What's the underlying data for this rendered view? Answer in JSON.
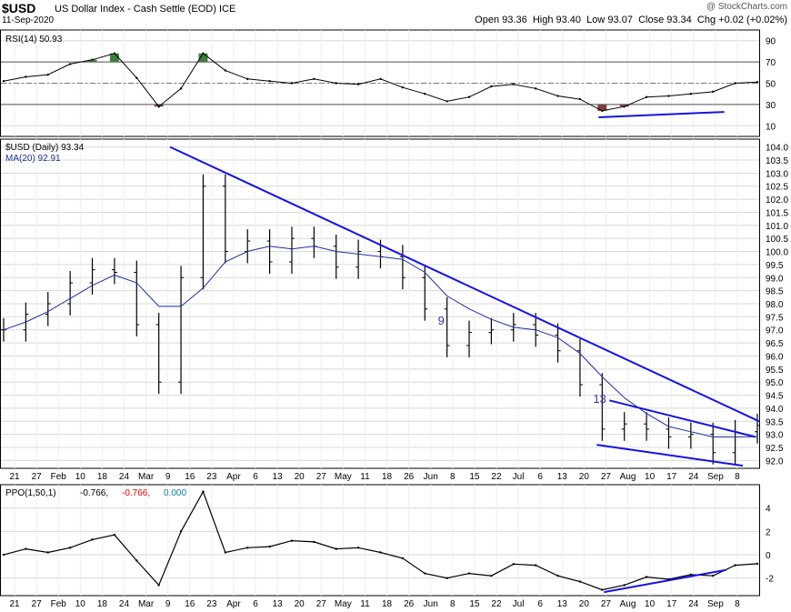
{
  "header": {
    "symbol": "$USD",
    "description": "US Dollar Index - Cash Settle (EOD)  ICE",
    "date": "11-Sep-2020",
    "credit": "@ StockCharts.com",
    "quote": {
      "open_label": "Open",
      "open": "93.36",
      "high_label": "High",
      "high": "93.40",
      "low_label": "Low",
      "low": "93.07",
      "close_label": "Close",
      "close": "93.34",
      "chg_label": "Chg",
      "chg": "+0.02 (+0.02%)"
    }
  },
  "colors": {
    "price": "#000000",
    "ma": "#1f2f9c",
    "trendline": "#1414e0",
    "overbought_fill": "#3f7f3f",
    "oversold_fill": "#7f3f3f",
    "ppo_signal": "#e00000",
    "ppo_hist": "#0a7fa0",
    "grid": "#d8d8d8"
  },
  "x_axis_labels": [
    "21",
    "27",
    "Feb",
    "10",
    "18",
    "24",
    "Mar",
    "9",
    "16",
    "23",
    "Apr",
    "6",
    "13",
    "20",
    "27",
    "May",
    "11",
    "18",
    "26",
    "Jun",
    "8",
    "15",
    "22",
    "Jul",
    "6",
    "13",
    "20",
    "27",
    "Aug",
    "10",
    "17",
    "24",
    "Sep",
    "8"
  ],
  "chart_data": [
    {
      "type": "line",
      "panel": "rsi",
      "legend": "RSI(14) 50.93",
      "y_ticks": [
        10,
        30,
        50,
        70,
        90
      ],
      "ylim": [
        0,
        100
      ],
      "overbought": 70,
      "oversold": 30,
      "x": [
        "Jan 20",
        "Jan 27",
        "Feb 3",
        "Feb 10",
        "Feb 18",
        "Feb 24",
        "Mar 2",
        "Mar 9",
        "Mar 16",
        "Mar 23",
        "Mar 30",
        "Apr 6",
        "Apr 13",
        "Apr 20",
        "Apr 27",
        "May 4",
        "May 11",
        "May 18",
        "May 26",
        "Jun 1",
        "Jun 8",
        "Jun 15",
        "Jun 22",
        "Jun 29",
        "Jul 6",
        "Jul 13",
        "Jul 20",
        "Jul 27",
        "Aug 3",
        "Aug 10",
        "Aug 17",
        "Aug 24",
        "Aug 31",
        "Sep 8",
        "Sep 11"
      ],
      "values": [
        52,
        56,
        58,
        68,
        72,
        78,
        55,
        28,
        45,
        78,
        62,
        54,
        52,
        50,
        54,
        50,
        49,
        54,
        46,
        40,
        33,
        37,
        47,
        49,
        45,
        38,
        35,
        24,
        28,
        37,
        38,
        40,
        42,
        50,
        51
      ]
    },
    {
      "type": "ohlc",
      "panel": "price",
      "legend": "$USD (Daily) 93.34",
      "ma_legend": "MA(20) 92.91",
      "y_ticks": [
        92.0,
        92.5,
        93.0,
        93.5,
        94.0,
        94.5,
        95.0,
        95.5,
        96.0,
        96.5,
        97.0,
        97.5,
        98.0,
        98.5,
        99.0,
        99.5,
        100.0,
        100.5,
        101.0,
        101.5,
        102.0,
        102.5,
        103.0,
        103.5,
        104.0
      ],
      "ylim": [
        91.7,
        104.3
      ],
      "x": [
        "Jan 20",
        "Jan 27",
        "Feb 3",
        "Feb 10",
        "Feb 18",
        "Feb 24",
        "Mar 2",
        "Mar 9",
        "Mar 16",
        "Mar 23",
        "Mar 30",
        "Apr 6",
        "Apr 13",
        "Apr 20",
        "Apr 27",
        "May 4",
        "May 11",
        "May 18",
        "May 26",
        "Jun 1",
        "Jun 8",
        "Jun 15",
        "Jun 22",
        "Jun 29",
        "Jul 6",
        "Jul 13",
        "Jul 20",
        "Jul 27",
        "Aug 3",
        "Aug 10",
        "Aug 17",
        "Aug 24",
        "Aug 31",
        "Sep 8",
        "Sep 11"
      ],
      "close": [
        97.0,
        97.6,
        98.0,
        98.8,
        99.3,
        99.2,
        97.2,
        95.0,
        99.0,
        102.5,
        100.0,
        100.4,
        99.6,
        100.5,
        100.2,
        99.4,
        100.0,
        99.8,
        99.0,
        97.8,
        96.4,
        96.9,
        97.0,
        97.2,
        96.8,
        96.2,
        94.9,
        93.2,
        93.4,
        93.2,
        92.9,
        93.0,
        92.3,
        93.1,
        93.34
      ],
      "ma20": [
        97.0,
        97.3,
        97.7,
        98.2,
        98.7,
        99.1,
        98.8,
        97.9,
        97.9,
        98.6,
        99.6,
        100.0,
        100.2,
        100.1,
        100.2,
        100.0,
        99.9,
        99.8,
        99.7,
        99.2,
        98.3,
        97.8,
        97.4,
        97.1,
        97.0,
        96.7,
        96.1,
        95.2,
        94.4,
        93.8,
        93.3,
        93.1,
        92.9,
        92.9,
        92.91
      ],
      "annotations": [
        {
          "label": "9",
          "x": "Jun 8",
          "y": 97.2
        },
        {
          "label": "13",
          "x": "Jul 27",
          "y": 94.2
        }
      ]
    },
    {
      "type": "line",
      "panel": "ppo",
      "legend_name": "PPO(1,50,1)",
      "legend_value": "-0.766,",
      "legend_signal": "-0.766,",
      "legend_hist": "0.000",
      "y_ticks": [
        -2,
        0,
        2,
        4
      ],
      "ylim": [
        -3.5,
        6
      ],
      "x": [
        "Jan 20",
        "Jan 27",
        "Feb 3",
        "Feb 10",
        "Feb 18",
        "Feb 24",
        "Mar 2",
        "Mar 9",
        "Mar 16",
        "Mar 23",
        "Mar 30",
        "Apr 6",
        "Apr 13",
        "Apr 20",
        "Apr 27",
        "May 4",
        "May 11",
        "May 18",
        "May 26",
        "Jun 1",
        "Jun 8",
        "Jun 15",
        "Jun 22",
        "Jun 29",
        "Jul 6",
        "Jul 13",
        "Jul 20",
        "Jul 27",
        "Aug 3",
        "Aug 10",
        "Aug 17",
        "Aug 24",
        "Aug 31",
        "Sep 8",
        "Sep 11"
      ],
      "values": [
        0,
        0.5,
        0.2,
        0.6,
        1.3,
        1.7,
        -0.5,
        -2.6,
        2.0,
        5.4,
        0.2,
        0.6,
        0.7,
        1.2,
        1.1,
        0.5,
        0.6,
        0.2,
        -0.3,
        -1.6,
        -2.0,
        -1.6,
        -1.8,
        -0.8,
        -0.9,
        -1.8,
        -2.3,
        -3.0,
        -2.6,
        -1.9,
        -2.1,
        -1.7,
        -1.8,
        -0.9,
        -0.766
      ]
    }
  ]
}
